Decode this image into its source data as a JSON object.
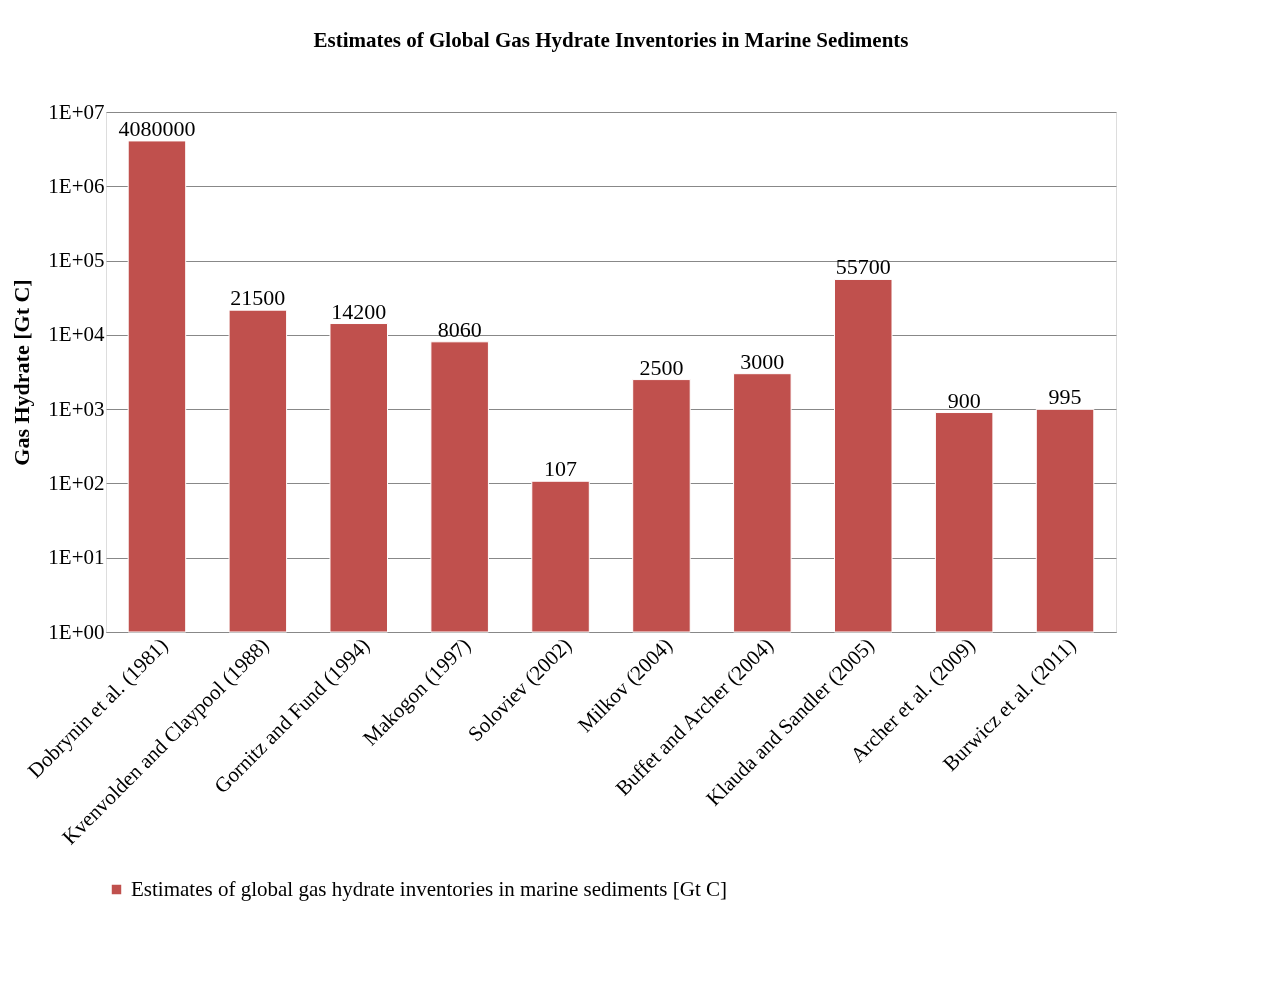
{
  "chart_data": {
    "type": "bar",
    "title": "Estimates of Global Gas Hydrate Inventories in Marine Sediments",
    "ylabel": "Gas Hydrate [Gt C]",
    "categories": [
      "Dobrynin et al. (1981)",
      "Kvenvolden and Claypool (1988)",
      "Gornitz and Fund (1994)",
      "Makogon (1997)",
      "Soloviev (2002)",
      "Milkov (2004)",
      "Buffet and Archer (2004)",
      "Klauda and Sandler (2005)",
      "Archer et al. (2009)",
      "Burwicz et al. (2011)"
    ],
    "series": [
      {
        "name": "Estimates of global gas hydrate inventories in marine sediments [Gt C]",
        "color": "#c0504d",
        "values": [
          4080000,
          21500,
          14200,
          8060,
          107,
          2500,
          3000,
          55700,
          900,
          995
        ]
      }
    ],
    "log": true,
    "ylim": [
      1,
      10000000
    ],
    "yticks": [
      {
        "value": 1,
        "label": "1E+00"
      },
      {
        "value": 10,
        "label": "1E+01"
      },
      {
        "value": 100,
        "label": "1E+02"
      },
      {
        "value": 1000,
        "label": "1E+03"
      },
      {
        "value": 10000,
        "label": "1E+04"
      },
      {
        "value": 100000,
        "label": "1E+05"
      },
      {
        "value": 1000000,
        "label": "1E+06"
      },
      {
        "value": 10000000,
        "label": "1E+07"
      }
    ],
    "grid": "y",
    "legend": "bottom",
    "data_labels": true
  }
}
